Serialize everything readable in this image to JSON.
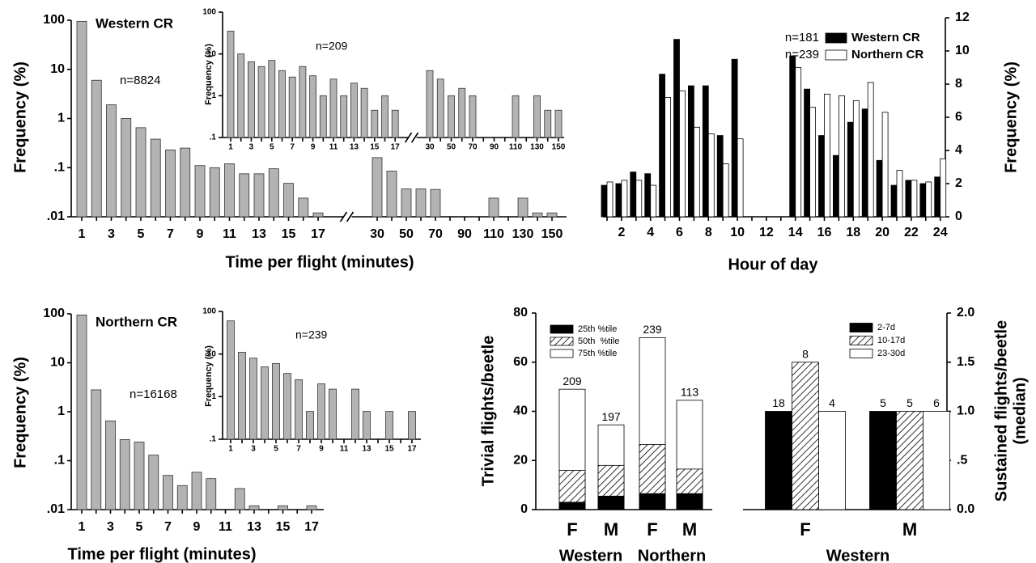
{
  "chart_data": [
    {
      "type": "logbar",
      "log_scale": true,
      "ylabel": "Frequency (%)",
      "xlabel": "Time per flight (minutes)",
      "annotations": [
        "Western CR",
        "n=8824"
      ],
      "color": "#b3b3b3",
      "ylim": [
        0.01,
        100
      ],
      "yticks": [
        {
          "value": 0.01,
          "label": ".01"
        },
        {
          "value": 0.1,
          "label": ".1"
        },
        1,
        10,
        100
      ],
      "segments": [
        {
          "categories": [
            "1",
            null,
            "3",
            null,
            "5",
            null,
            "7",
            null,
            "9",
            null,
            "11",
            null,
            "13",
            null,
            "15",
            null,
            "17"
          ],
          "values": [
            95,
            6,
            1.9,
            1.0,
            0.65,
            0.38,
            0.23,
            0.25,
            0.11,
            0.1,
            0.12,
            0.075,
            0.075,
            0.095,
            0.048,
            0.024,
            0.012
          ]
        },
        {
          "categories": [
            "30",
            null,
            "50",
            null,
            "70",
            null,
            "90",
            null,
            "110",
            null,
            "130",
            null,
            "150"
          ],
          "values": [
            0.16,
            0.085,
            0.037,
            0.037,
            0.036,
            null,
            null,
            null,
            0.024,
            null,
            0.024,
            0.012,
            0.012
          ]
        }
      ]
    },
    {
      "type": "logbar",
      "log_scale": true,
      "ylabel": "Frequency (%)",
      "annotations": [
        "n=209"
      ],
      "color": "#b3b3b3",
      "ylim": [
        0.1,
        100
      ],
      "yticks": [
        {
          "value": 0.1,
          "label": ".1"
        },
        1,
        10,
        100
      ],
      "segments": [
        {
          "categories": [
            "1",
            null,
            "3",
            null,
            "5",
            null,
            "7",
            null,
            "9",
            null,
            "11",
            null,
            "13",
            null,
            "15",
            null,
            "17"
          ],
          "values": [
            35,
            10,
            6.5,
            5,
            7,
            4,
            2.8,
            5,
            3,
            1,
            2.5,
            1,
            2,
            1.5,
            0.45,
            1,
            0.45
          ]
        },
        {
          "categories": [
            "30",
            null,
            "50",
            null,
            "70",
            null,
            "90",
            null,
            "110",
            null,
            "130",
            null,
            "150"
          ],
          "values": [
            4,
            2.5,
            1,
            1.5,
            1,
            null,
            null,
            null,
            1,
            null,
            1,
            0.45,
            0.45
          ]
        }
      ]
    },
    {
      "type": "groupbar",
      "xlabel": "Hour of day",
      "ylabel": "Frequency (%)",
      "categories": [
        null,
        "2",
        null,
        "4",
        null,
        "6",
        null,
        "8",
        null,
        "10",
        null,
        "12",
        null,
        "14",
        null,
        "16",
        null,
        "18",
        null,
        "20",
        null,
        "22",
        null,
        "24"
      ],
      "y2lim": [
        0,
        12
      ],
      "y2ticks": [
        0,
        2,
        4,
        6,
        8,
        10,
        12
      ],
      "series": [
        {
          "name": "Western CR",
          "n_label": "n=181",
          "color": "#000000",
          "axis": "y2",
          "values": [
            1.9,
            2,
            2.7,
            2.6,
            8.6,
            10.7,
            7.9,
            7.9,
            4.9,
            9.5,
            null,
            null,
            null,
            9.7,
            7.7,
            4.9,
            3.7,
            5.7,
            6.5,
            3.4,
            1.9,
            2.2,
            2,
            2.4
          ]
        },
        {
          "name": "Northern CR",
          "n_label": "n=239",
          "color": "#ffffff",
          "axis": "y2",
          "values": [
            2.1,
            2.2,
            2.2,
            1.9,
            7.2,
            7.6,
            5.4,
            5.0,
            3.2,
            4.7,
            null,
            null,
            null,
            9.0,
            6.6,
            7.4,
            7.3,
            7.0,
            8.1,
            6.3,
            2.8,
            2.2,
            2.1,
            3.5
          ]
        }
      ]
    },
    {
      "type": "logbar",
      "log_scale": true,
      "ylabel": "Frequency (%)",
      "xlabel": "Time per flight (minutes)",
      "annotations": [
        "Northern CR",
        "n=16168"
      ],
      "color": "#b3b3b3",
      "ylim": [
        0.01,
        100
      ],
      "yticks": [
        {
          "value": 0.01,
          "label": ".01"
        },
        {
          "value": 0.1,
          "label": ".1"
        },
        1,
        10,
        100
      ],
      "segments": [
        {
          "categories": [
            "1",
            null,
            "3",
            null,
            "5",
            null,
            "7",
            null,
            "9",
            null,
            "11",
            null,
            "13",
            null,
            "15",
            null,
            "17"
          ],
          "values": [
            95,
            2.8,
            0.65,
            0.27,
            0.24,
            0.13,
            0.05,
            0.031,
            0.058,
            0.043,
            null,
            0.027,
            0.012,
            null,
            0.012,
            null,
            0.012
          ]
        }
      ]
    },
    {
      "type": "logbar",
      "log_scale": true,
      "ylabel": "Frequency (%)",
      "annotations": [
        "n=239"
      ],
      "color": "#b3b3b3",
      "ylim": [
        0.1,
        100
      ],
      "yticks": [
        {
          "value": 0.1,
          "label": ".1"
        },
        1,
        10,
        100
      ],
      "segments": [
        {
          "categories": [
            "1",
            null,
            "3",
            null,
            "5",
            null,
            "7",
            null,
            "9",
            null,
            "11",
            null,
            "13",
            null,
            "15",
            null,
            "17"
          ],
          "values": [
            60,
            11,
            8,
            5,
            6,
            3.5,
            2.5,
            0.45,
            2,
            1.5,
            null,
            1.5,
            0.45,
            null,
            0.45,
            null,
            0.45
          ]
        }
      ]
    },
    {
      "type": "overlaybar",
      "ylabel": "Trivial flights/beetle",
      "categories": [
        "F",
        "M",
        "F",
        "M"
      ],
      "groups": [
        "Western",
        "Northern"
      ],
      "ylim": [
        0,
        80
      ],
      "yticks": [
        0,
        20,
        40,
        60,
        80
      ],
      "n_labels": [
        209,
        197,
        239,
        113
      ],
      "series": [
        {
          "name": "25th %tile",
          "color": "#000000",
          "values": [
            3,
            5.5,
            6.5,
            6.5
          ]
        },
        {
          "name": "50th  %tile",
          "color": "#ffffff",
          "hatch": true,
          "values": [
            16,
            18,
            26.5,
            16.5
          ]
        },
        {
          "name": "75th %tile",
          "color": "#ffffff",
          "values": [
            49,
            34.5,
            70,
            44.5
          ]
        }
      ]
    },
    {
      "type": "groupbar2",
      "ylabel": [
        "Sustained flights/beetle",
        "(median)"
      ],
      "categories": [
        "F",
        "M"
      ],
      "groups": [
        "Western"
      ],
      "y2lim": [
        0,
        2
      ],
      "y2ticks": [
        {
          "value": 0,
          "label": "0.0"
        },
        {
          "value": 0.5,
          "label": ".5"
        },
        {
          "value": 1,
          "label": "1.0"
        },
        1.5,
        {
          "value": 2,
          "label": "2.0"
        }
      ],
      "series": [
        {
          "name": "2-7d",
          "color": "#000000",
          "axis": "y2",
          "values": [
            1.0,
            1.0
          ],
          "n_labels": [
            18,
            5
          ]
        },
        {
          "name": "10-17d",
          "color": "#ffffff",
          "hatch": true,
          "axis": "y2",
          "values": [
            1.5,
            1.0
          ],
          "n_labels": [
            8,
            5
          ]
        },
        {
          "name": "23-30d",
          "color": "#ffffff",
          "axis": "y2",
          "values": [
            1.0,
            1.0
          ],
          "n_labels": [
            4,
            6
          ]
        }
      ]
    }
  ]
}
